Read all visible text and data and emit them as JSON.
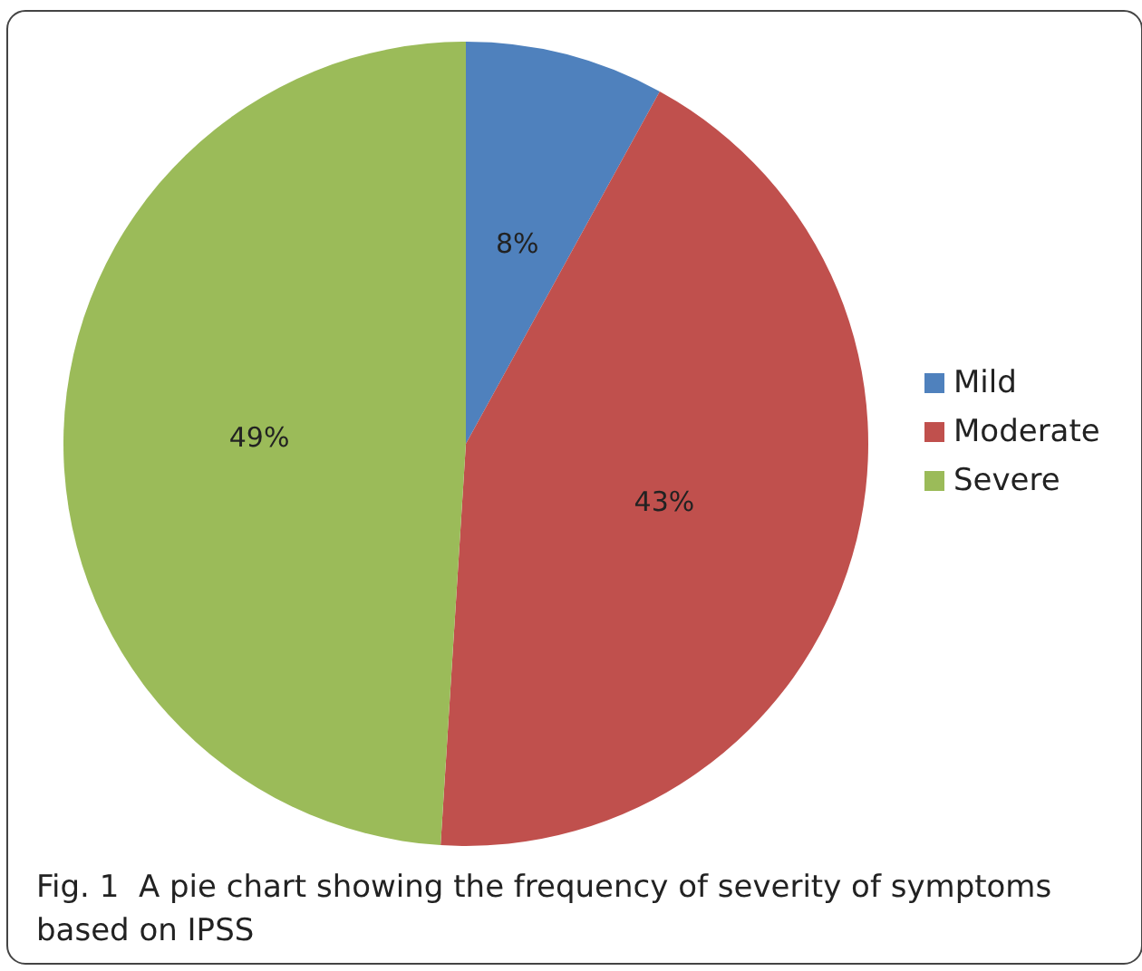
{
  "chart_data": {
    "type": "pie",
    "categories": [
      "Mild",
      "Moderate",
      "Severe"
    ],
    "values": [
      8,
      43,
      49
    ],
    "colors": [
      "#4f81bd",
      "#c0504d",
      "#9bbb59"
    ],
    "value_labels": [
      "8%",
      "43%",
      "49%"
    ],
    "legend": "right",
    "annotations": [
      "Fig. 1  A pie chart showing the frequency of severity of symptoms based on IPSS"
    ]
  }
}
